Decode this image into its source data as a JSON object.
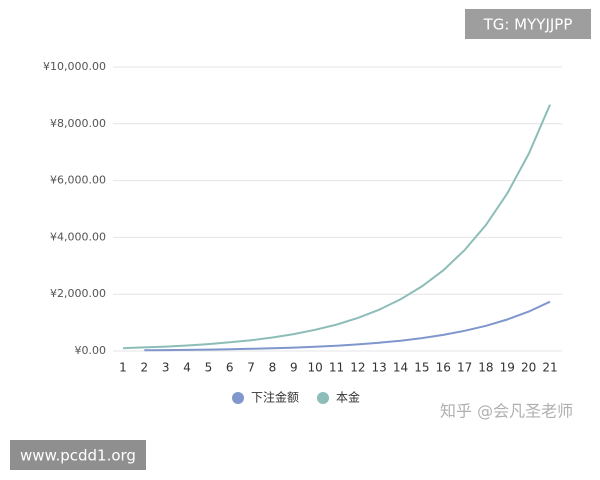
{
  "chart_data": {
    "type": "line",
    "categories": [
      "1",
      "2",
      "3",
      "4",
      "5",
      "6",
      "7",
      "8",
      "9",
      "10",
      "11",
      "12",
      "13",
      "14",
      "15",
      "16",
      "17",
      "18",
      "19",
      "20",
      "21"
    ],
    "series": [
      {
        "name": "下注金额",
        "color": "#7f97cc",
        "values": [
          null,
          25,
          31,
          39,
          49,
          61,
          76,
          95,
          119,
          149,
          186,
          233,
          291,
          364,
          455,
          568,
          711,
          888,
          1110,
          1388,
          1735
        ]
      },
      {
        "name": "本金",
        "color": "#8cbdb8",
        "values": [
          100,
          125,
          156,
          195,
          244,
          305,
          381,
          477,
          596,
          745,
          931,
          1164,
          1455,
          1819,
          2274,
          2842,
          3553,
          4441,
          5551,
          6939,
          8674
        ]
      }
    ],
    "ylim": [
      0,
      10000
    ],
    "yticks": [
      {
        "value": 0,
        "label": "¥0.00"
      },
      {
        "value": 2000,
        "label": "¥2,000.00"
      },
      {
        "value": 4000,
        "label": "¥4,000.00"
      },
      {
        "value": 6000,
        "label": "¥6,000.00"
      },
      {
        "value": 8000,
        "label": "¥8,000.00"
      },
      {
        "value": 10000,
        "label": "¥10,000.00"
      }
    ],
    "grid": true,
    "legend": "bottom",
    "annotations": [
      "TG: MYYJJPP",
      "www.pcdd1.org",
      "知乎 @会凡圣老师"
    ]
  }
}
